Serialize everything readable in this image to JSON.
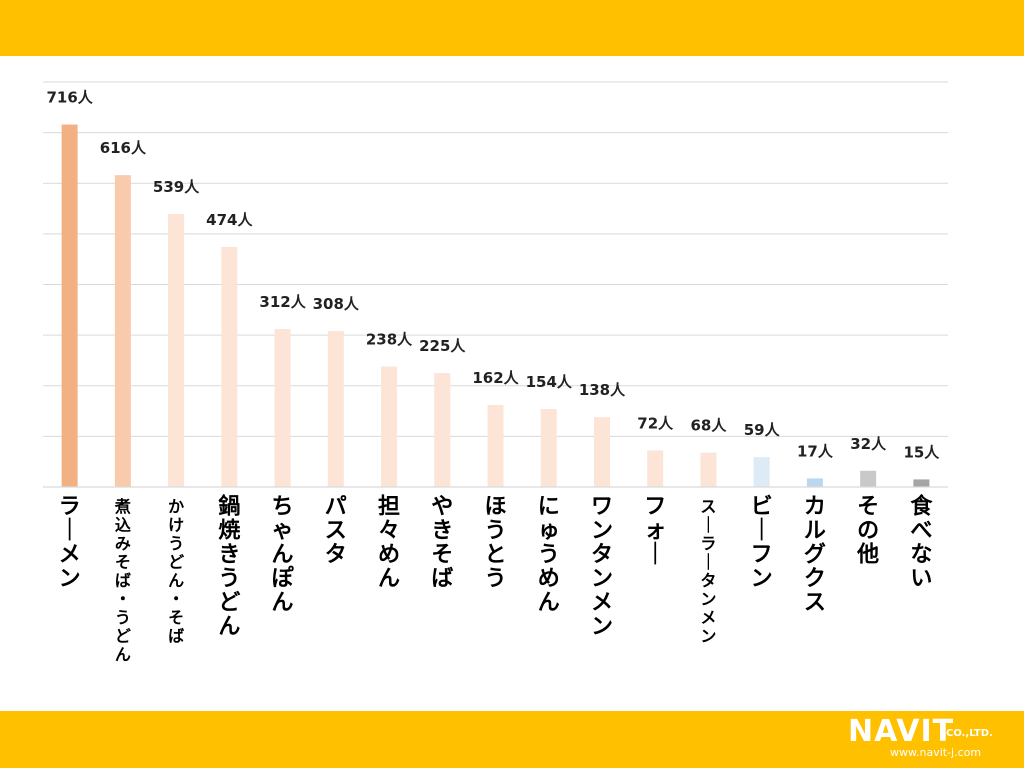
{
  "chart_data": {
    "type": "bar",
    "categories": [
      "ラーメン",
      "煮込みそば・うどん",
      "かけうどん・そば",
      "鍋焼きうどん",
      "ちゃんぽん",
      "パスタ",
      "担々めん",
      "やきそば",
      "ほうとう",
      "にゅうめん",
      "ワンタンメン",
      "フォー",
      "スーラータンメン",
      "ビーフン",
      "カルグクス",
      "その他",
      "食べない"
    ],
    "values": [
      716,
      616,
      539,
      474,
      312,
      308,
      238,
      225,
      162,
      154,
      138,
      72,
      68,
      59,
      17,
      32,
      15
    ],
    "labels": [
      "716人",
      "616人",
      "539人",
      "474人",
      "312人",
      "308人",
      "238人",
      "225人",
      "162人",
      "154人",
      "138人",
      "72人",
      "68人",
      "59人",
      "17人",
      "32人",
      "15人"
    ],
    "colors": [
      "#F2B183",
      "#F8CBAD",
      "#FCE4D6",
      "#FCE4D6",
      "#FCE4D6",
      "#FCE4D6",
      "#FCE4D6",
      "#FCE4D6",
      "#FCE4D6",
      "#FCE4D6",
      "#FCE4D6",
      "#FCE4D6",
      "#FCE4D6",
      "#DDEBF7",
      "#BDD7EE",
      "#C9C9C9",
      "#A5A5A5"
    ],
    "ylim": [
      0,
      800
    ],
    "grid": true
  },
  "logo": {
    "name": "NAVIT",
    "suffix": "CO.,LTD.",
    "url": "www.navit-j.com"
  },
  "colors": {
    "band": "#FFC000",
    "grid": "#D9D9D9"
  }
}
